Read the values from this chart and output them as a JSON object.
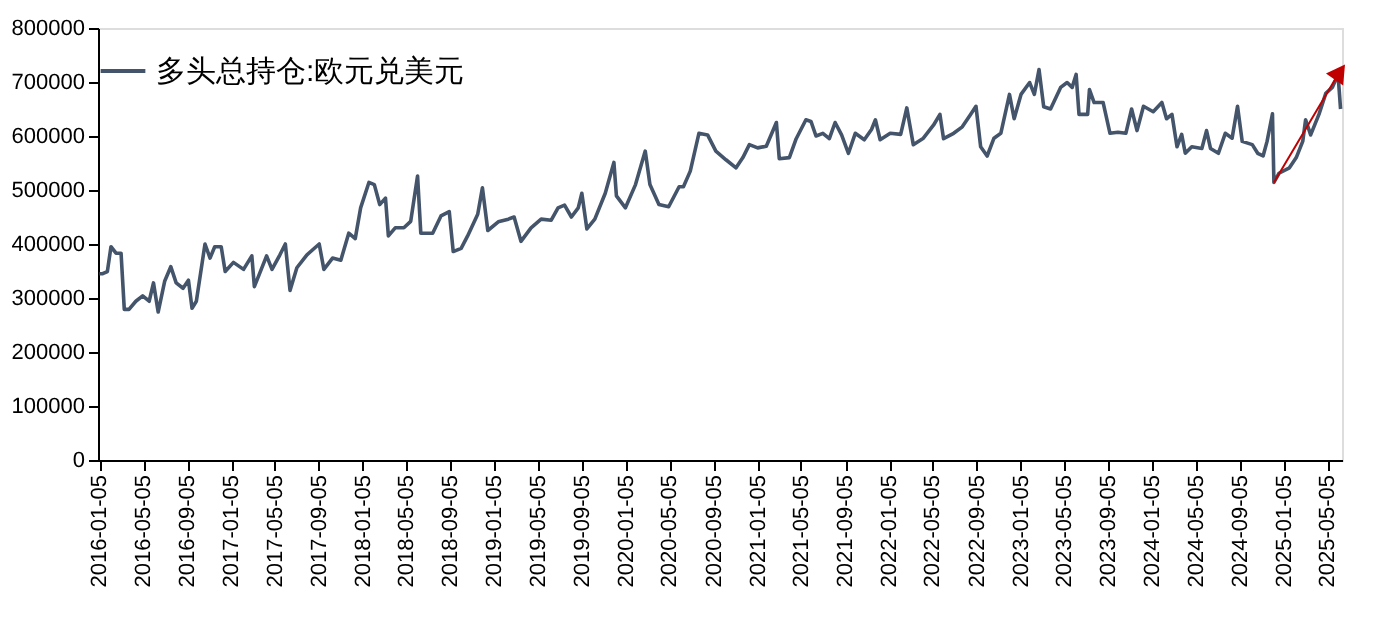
{
  "chart_data": {
    "type": "line",
    "x": [
      "2016-01-05",
      "2016-01-14",
      "2016-01-27",
      "2016-02-06",
      "2016-02-20",
      "2016-03-05",
      "2016-03-14",
      "2016-03-27",
      "2016-04-15",
      "2016-05-04",
      "2016-05-22",
      "2016-06-03",
      "2016-06-16",
      "2016-07-04",
      "2016-07-21",
      "2016-08-05",
      "2016-08-24",
      "2016-09-08",
      "2016-09-18",
      "2016-09-30",
      "2016-10-24",
      "2016-11-07",
      "2016-11-20",
      "2016-12-08",
      "2016-12-19",
      "2017-01-11",
      "2017-02-08",
      "2017-03-03",
      "2017-03-10",
      "2017-03-25",
      "2017-04-13",
      "2017-04-28",
      "2017-05-20",
      "2017-06-04",
      "2017-06-17",
      "2017-07-06",
      "2017-08-03",
      "2017-09-06",
      "2017-09-19",
      "2017-10-13",
      "2017-11-05",
      "2017-11-27",
      "2017-12-15",
      "2017-12-30",
      "2018-01-22",
      "2018-02-06",
      "2018-02-21",
      "2018-03-09",
      "2018-03-17",
      "2018-04-05",
      "2018-04-29",
      "2018-05-18",
      "2018-06-06",
      "2018-06-15",
      "2018-07-18",
      "2018-08-10",
      "2018-09-02",
      "2018-09-13",
      "2018-10-05",
      "2018-10-23",
      "2018-11-20",
      "2018-12-03",
      "2018-12-18",
      "2019-01-16",
      "2019-02-13",
      "2019-03-01",
      "2019-03-20",
      "2019-04-17",
      "2019-05-15",
      "2019-06-12",
      "2019-07-01",
      "2019-07-19",
      "2019-08-07",
      "2019-08-26",
      "2019-09-05",
      "2019-09-19",
      "2019-10-11",
      "2019-11-09",
      "2019-12-03",
      "2019-12-10",
      "2020-01-04",
      "2020-02-01",
      "2020-02-28",
      "2020-03-12",
      "2020-04-06",
      "2020-05-03",
      "2020-06-01",
      "2020-06-13",
      "2020-07-02",
      "2020-07-26",
      "2020-08-19",
      "2020-09-11",
      "2020-10-09",
      "2020-11-06",
      "2020-11-25",
      "2020-12-13",
      "2021-01-05",
      "2021-01-29",
      "2021-02-26",
      "2021-03-06",
      "2021-04-03",
      "2021-04-22",
      "2021-05-19",
      "2021-06-02",
      "2021-06-16",
      "2021-07-05",
      "2021-07-23",
      "2021-08-08",
      "2021-08-26",
      "2021-09-14",
      "2021-10-03",
      "2021-10-28",
      "2021-11-17",
      "2021-11-28",
      "2021-12-11",
      "2022-01-08",
      "2022-02-06",
      "2022-02-23",
      "2022-03-13",
      "2022-04-10",
      "2022-05-08",
      "2022-05-26",
      "2022-06-05",
      "2022-07-03",
      "2022-07-27",
      "2022-08-19",
      "2022-09-03",
      "2022-09-16",
      "2022-10-04",
      "2022-10-23",
      "2022-11-11",
      "2022-12-05",
      "2022-12-18",
      "2023-01-06",
      "2023-01-30",
      "2023-02-12",
      "2023-02-25",
      "2023-03-10",
      "2023-03-29",
      "2023-04-26",
      "2023-05-14",
      "2023-05-28",
      "2023-06-08",
      "2023-06-16",
      "2023-07-10",
      "2023-07-15",
      "2023-07-28",
      "2023-08-22",
      "2023-09-10",
      "2023-10-02",
      "2023-10-24",
      "2023-11-09",
      "2023-11-24",
      "2023-12-12",
      "2024-01-08",
      "2024-02-01",
      "2024-02-14",
      "2024-02-29",
      "2024-03-14",
      "2024-03-27",
      "2024-04-06",
      "2024-04-24",
      "2024-05-22",
      "2024-06-04",
      "2024-06-15",
      "2024-07-07",
      "2024-07-26",
      "2024-08-14",
      "2024-08-29",
      "2024-09-11",
      "2024-10-09",
      "2024-10-24",
      "2024-11-08",
      "2024-11-19",
      "2024-12-04",
      "2024-12-08",
      "2024-12-22",
      "2025-01-20",
      "2025-02-08",
      "2025-02-26",
      "2025-03-06",
      "2025-03-20",
      "2025-04-12",
      "2025-05-01",
      "2025-05-19",
      "2025-06-04",
      "2025-06-11"
    ],
    "series": [
      {
        "name": "多头总持仓:欧元兑美元",
        "color": "#44546a",
        "values": [
          345000,
          345000,
          349000,
          395000,
          383000,
          383000,
          279000,
          279000,
          294000,
          304000,
          294000,
          328000,
          274000,
          331000,
          358000,
          328000,
          318000,
          333000,
          281000,
          294000,
          400000,
          374000,
          395000,
          395000,
          349000,
          366000,
          353000,
          378000,
          321000,
          346000,
          378000,
          353000,
          380000,
          400000,
          314000,
          356000,
          380000,
          400000,
          353000,
          374000,
          370000,
          420000,
          410000,
          467000,
          514000,
          510000,
          473000,
          485000,
          415000,
          430000,
          430000,
          442000,
          526000,
          420000,
          420000,
          452000,
          460000,
          386000,
          392000,
          415000,
          455000,
          504000,
          425000,
          441000,
          446000,
          450000,
          405000,
          430000,
          446000,
          444000,
          467000,
          472000,
          450000,
          467000,
          494000,
          428000,
          446000,
          494000,
          551000,
          489000,
          467000,
          510000,
          572000,
          510000,
          473000,
          469000,
          506000,
          506000,
          535000,
          605000,
          602000,
          572000,
          556000,
          541000,
          560000,
          584000,
          578000,
          581000,
          625000,
          558000,
          560000,
          595000,
          630000,
          627000,
          600000,
          605000,
          595000,
          625000,
          602000,
          568000,
          605000,
          593000,
          612000,
          630000,
          593000,
          605000,
          603000,
          652000,
          584000,
          596000,
          620000,
          640000,
          595000,
          605000,
          617000,
          640000,
          655000,
          580000,
          563000,
          596000,
          605000,
          677000,
          632000,
          677000,
          699000,
          677000,
          723000,
          654000,
          650000,
          690000,
          699000,
          690000,
          714000,
          640000,
          640000,
          686000,
          662000,
          662000,
          605000,
          607000,
          605000,
          650000,
          610000,
          655000,
          645000,
          662000,
          632000,
          640000,
          580000,
          603000,
          568000,
          580000,
          577000,
          610000,
          577000,
          568000,
          605000,
          596000,
          655000,
          590000,
          584000,
          568000,
          563000,
          590000,
          641000,
          514000,
          531000,
          541000,
          560000,
          590000,
          630000,
          602000,
          640000,
          679000,
          690000,
          714000,
          650000
        ]
      }
    ],
    "xlim": [
      "2016-01-01",
      "2025-06-15"
    ],
    "xticks": [
      "2016-01-05",
      "2016-05-05",
      "2016-09-05",
      "2017-01-05",
      "2017-05-05",
      "2017-09-05",
      "2018-01-05",
      "2018-05-05",
      "2018-09-05",
      "2019-01-05",
      "2019-05-05",
      "2019-09-05",
      "2020-01-05",
      "2020-05-05",
      "2020-09-05",
      "2021-01-05",
      "2021-05-05",
      "2021-09-05",
      "2022-01-05",
      "2022-05-05",
      "2022-09-05",
      "2023-01-05",
      "2023-05-05",
      "2023-09-05",
      "2024-01-05",
      "2024-05-05",
      "2024-09-05",
      "2025-01-05",
      "2025-05-05"
    ],
    "ylim": [
      0,
      800000
    ],
    "yticks": [
      0,
      100000,
      200000,
      300000,
      400000,
      500000,
      600000,
      700000,
      800000
    ],
    "grid": false,
    "legend": "top",
    "line_style": "solid",
    "marker": "none"
  }
}
